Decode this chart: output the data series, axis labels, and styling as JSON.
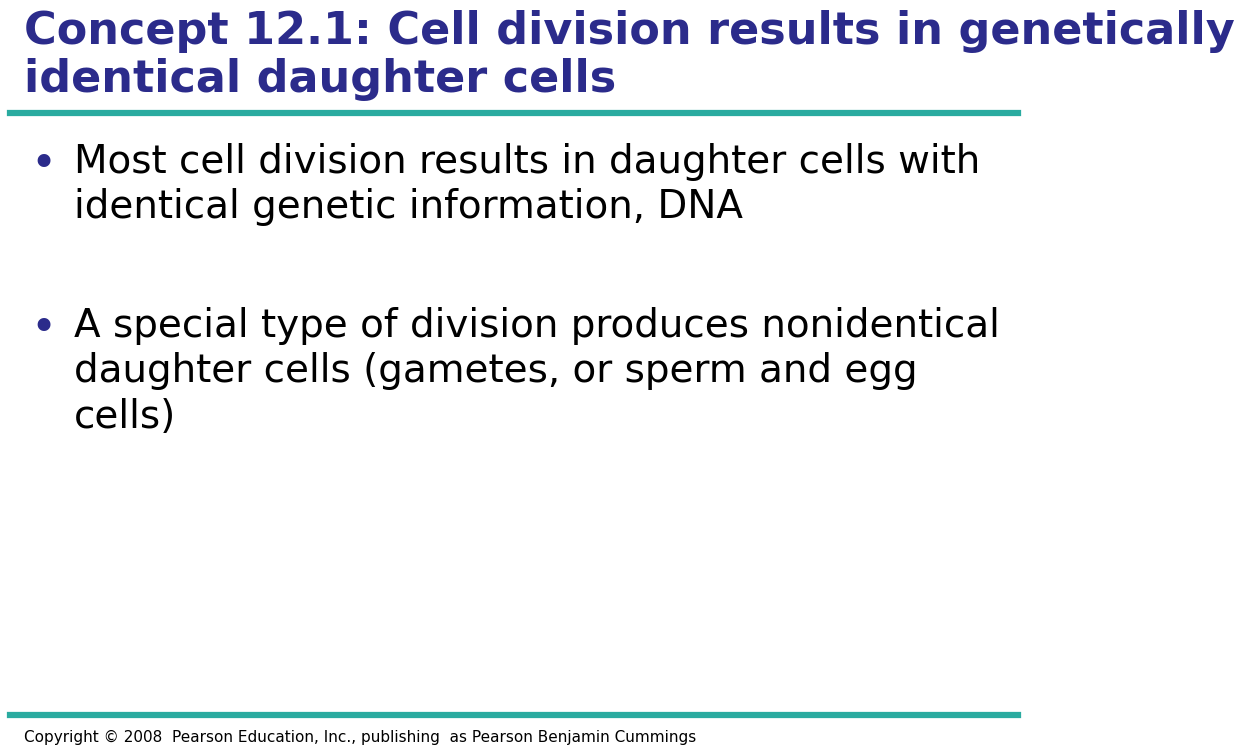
{
  "title_line1": "Concept 12.1: Cell division results in genetically",
  "title_line2": "identical daughter cells",
  "title_color": "#2B2B8B",
  "title_fontsize": 32,
  "title_fontstyle": "normal",
  "title_fontweight": "bold",
  "separator_color": "#2AABA0",
  "separator_linewidth": 4.5,
  "bullet_color": "#2B2B8B",
  "bullet_text_color": "#000000",
  "bullet_fontsize": 28,
  "bullet1_line1": "Most cell division results in daughter cells with",
  "bullet1_line2": "identical genetic information, DNA",
  "bullet2_line1": "A special type of division produces nonidentical",
  "bullet2_line2": "daughter cells (gametes, or sperm and egg",
  "bullet2_line3": "cells)",
  "copyright_text": "Copyright © 2008  Pearson Education, Inc., publishing  as Pearson Benjamin Cummings",
  "copyright_fontsize": 11,
  "copyright_color": "#000000",
  "background_color": "#FFFFFF"
}
